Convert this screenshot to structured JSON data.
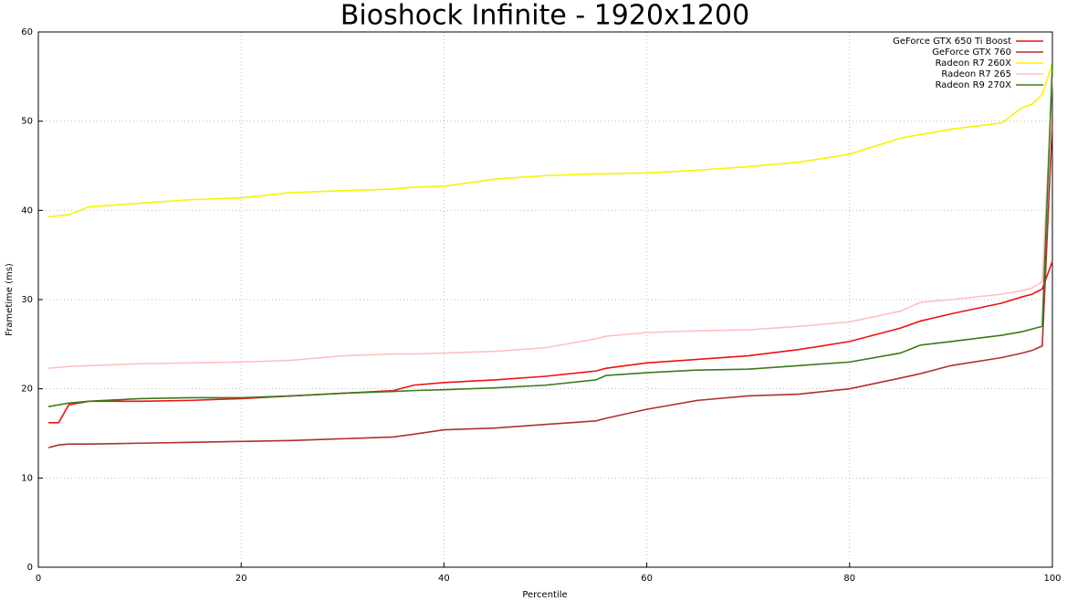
{
  "chart_data": {
    "type": "line",
    "title": "Bioshock Infinite - 1920x1200",
    "x_label": "Percentile",
    "y_label": "Frametime (ms)",
    "x": [
      1,
      2,
      3,
      5,
      10,
      15,
      20,
      25,
      30,
      35,
      37,
      40,
      45,
      50,
      55,
      56,
      60,
      65,
      70,
      75,
      80,
      85,
      87,
      90,
      95,
      97,
      98,
      99,
      100
    ],
    "series": [
      {
        "name": "GeForce GTX 650 Ti Boost",
        "color": "#ee1111",
        "values": [
          16.2,
          16.2,
          18.2,
          18.6,
          18.6,
          18.7,
          18.9,
          19.2,
          19.5,
          19.8,
          20.4,
          20.7,
          21.0,
          21.4,
          22.0,
          22.3,
          22.9,
          23.3,
          23.7,
          24.4,
          25.3,
          26.8,
          27.6,
          28.4,
          29.6,
          30.3,
          30.6,
          31.2,
          34.3
        ]
      },
      {
        "name": "GeForce GTX 760",
        "color": "#b03030",
        "values": [
          13.4,
          13.7,
          13.8,
          13.8,
          13.9,
          14.0,
          14.1,
          14.2,
          14.4,
          14.6,
          14.9,
          15.4,
          15.6,
          16.0,
          16.4,
          16.7,
          17.7,
          18.7,
          19.2,
          19.4,
          20.0,
          21.2,
          21.7,
          22.6,
          23.5,
          24.0,
          24.3,
          24.8,
          50
        ]
      },
      {
        "name": "Radeon R7 260X",
        "color": "#f5f500",
        "values": [
          39.3,
          39.4,
          39.5,
          40.4,
          40.8,
          41.2,
          41.4,
          42.0,
          42.2,
          42.4,
          42.6,
          42.7,
          43.5,
          43.9,
          44.1,
          44.1,
          44.2,
          44.5,
          44.9,
          45.4,
          46.3,
          48.1,
          48.5,
          49.1,
          49.8,
          51.5,
          51.9,
          53.0,
          56.5
        ]
      },
      {
        "name": "Radeon R7 265",
        "color": "#ffc0c0",
        "values": [
          22.3,
          22.4,
          22.5,
          22.6,
          22.8,
          22.9,
          23.0,
          23.2,
          23.7,
          23.9,
          23.9,
          24.0,
          24.2,
          24.6,
          25.6,
          25.9,
          26.3,
          26.5,
          26.6,
          27.0,
          27.5,
          28.7,
          29.7,
          30.0,
          30.6,
          31.0,
          31.3,
          32.0,
          55
        ]
      },
      {
        "name": "Radeon R9 270X",
        "color": "#3a7a1a",
        "values": [
          18.0,
          18.2,
          18.4,
          18.6,
          18.9,
          19.0,
          19.0,
          19.2,
          19.5,
          19.7,
          19.8,
          19.9,
          20.1,
          20.4,
          21.0,
          21.5,
          21.8,
          22.1,
          22.2,
          22.6,
          23.0,
          24.0,
          24.9,
          25.3,
          26.0,
          26.4,
          26.7,
          27.0,
          56.5
        ]
      }
    ],
    "xlim": [
      0,
      100
    ],
    "xticks": [
      0,
      20,
      40,
      60,
      80,
      100
    ],
    "ylim": [
      0,
      60
    ],
    "yticks": [
      0,
      10,
      20,
      30,
      40,
      50,
      60
    ],
    "grid": true,
    "legend": "top-right"
  }
}
